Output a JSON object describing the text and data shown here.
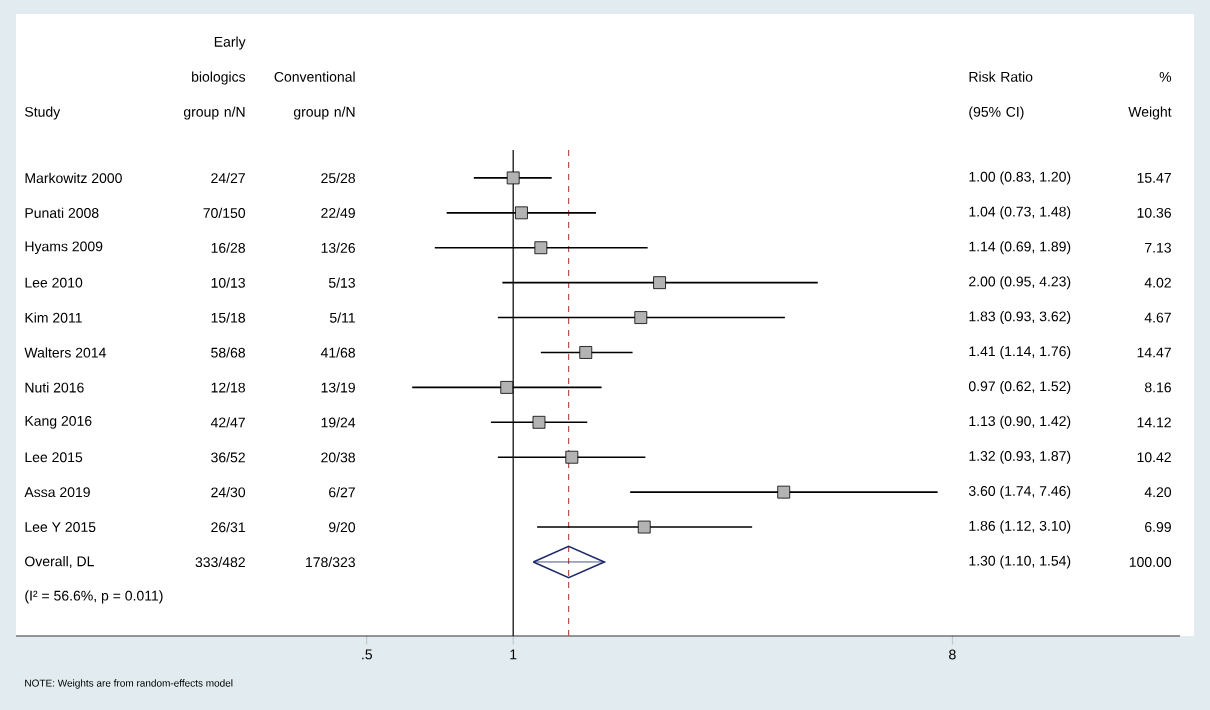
{
  "chart_data": {
    "type": "scatter",
    "orientation": "horizontal",
    "log": "x",
    "ylabel": "Study",
    "categories": [
      "Markowitz 2000",
      "Punati 2008",
      "Hyams 2009",
      "Lee 2010",
      "Kim 2011",
      "Walters 2014",
      "Nuti 2016",
      "Kang 2016",
      "Lee 2015",
      "Assa 2019",
      "Lee Y 2015",
      "Overall, DL"
    ],
    "series": [
      {
        "marker": "square",
        "color": "#b3b3b3",
        "values": [
          1.0,
          1.04,
          1.14,
          2.0,
          1.83,
          1.41,
          0.97,
          1.13,
          1.32,
          3.6,
          1.86,
          null
        ],
        "errors": [
          [
            0.83,
            1.2
          ],
          [
            0.73,
            1.48
          ],
          [
            0.69,
            1.89
          ],
          [
            0.95,
            4.23
          ],
          [
            0.93,
            3.62
          ],
          [
            1.14,
            1.76
          ],
          [
            0.62,
            1.52
          ],
          [
            0.9,
            1.42
          ],
          [
            0.93,
            1.87
          ],
          [
            1.74,
            7.46
          ],
          [
            1.12,
            3.1
          ],
          null
        ]
      },
      {
        "marker": "diamond",
        "color": "#1f2a6b",
        "values": [
          null,
          null,
          null,
          null,
          null,
          null,
          null,
          null,
          null,
          null,
          null,
          1.3
        ],
        "errors": [
          null,
          null,
          null,
          null,
          null,
          null,
          null,
          null,
          null,
          null,
          null,
          [
            1.1,
            1.54
          ]
        ]
      }
    ],
    "xlim": [
      0.095,
      23.5
    ],
    "xticks": [
      {
        "value": 0.5,
        "label": ".5"
      },
      {
        "value": 1,
        "label": "1"
      },
      {
        "value": 8,
        "label": "8"
      }
    ],
    "ref_lines": [
      {
        "axis": "x",
        "value": 1,
        "color": "#000000",
        "line_style": "solid"
      },
      {
        "axis": "x",
        "value": 1.3,
        "color": "#c0504d",
        "line_style": "dashed"
      }
    ],
    "annotations": [
      "Early biologics group n/N",
      "Conventional group n/N",
      "Risk Ratio (95% CI)",
      "% Weight",
      "(I² = 56.6%, p = 0.011)",
      "NOTE: Weights are from random-effects model",
      "24/27",
      "25/28",
      "1.00 (0.83, 1.20)",
      "15.47",
      "70/150",
      "22/49",
      "1.04 (0.73, 1.48)",
      "10.36",
      "16/28",
      "13/26",
      "1.14 (0.69, 1.89)",
      "7.13",
      "10/13",
      "5/13",
      "2.00 (0.95, 4.23)",
      "4.02",
      "15/18",
      "5/11",
      "1.83 (0.93, 3.62)",
      "4.67",
      "58/68",
      "41/68",
      "1.41 (1.14, 1.76)",
      "14.47",
      "12/18",
      "13/19",
      "0.97 (0.62, 1.52)",
      "8.16",
      "42/47",
      "19/24",
      "1.13 (0.90, 1.42)",
      "14.12",
      "36/52",
      "20/38",
      "1.32 (0.93, 1.87)",
      "10.42",
      "24/30",
      "6/27",
      "3.60 (1.74, 7.46)",
      "4.20",
      "26/31",
      "9/20",
      "1.86 (1.12, 3.10)",
      "6.99",
      "333/482",
      "178/323",
      "1.30 (1.10, 1.54)",
      "100.00"
    ]
  }
}
